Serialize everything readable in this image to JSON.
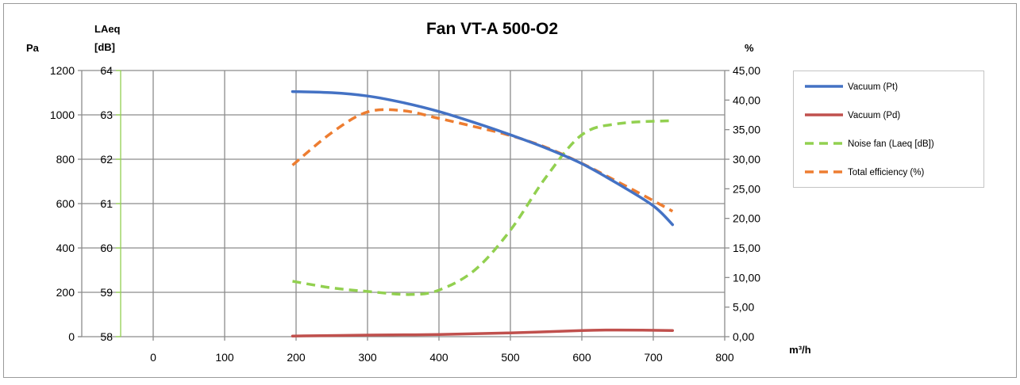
{
  "chart_data": {
    "type": "line",
    "title": "Fan VT-A 500-O2",
    "axes": {
      "x": {
        "unit_label": "m³/h",
        "ticks": [
          "0",
          "100",
          "200",
          "300",
          "400",
          "500",
          "600",
          "700",
          "800"
        ],
        "range": [
          -100,
          800
        ]
      },
      "y_pa": {
        "label": "Pa",
        "ticks": [
          "0",
          "200",
          "400",
          "600",
          "800",
          "1000",
          "1200"
        ],
        "range": [
          0,
          1200
        ]
      },
      "y_laeq": {
        "label_line1": "LAeq",
        "label_line2": "[dB]",
        "ticks": [
          "58",
          "59",
          "60",
          "61",
          "62",
          "63",
          "64"
        ],
        "range": [
          58,
          64
        ]
      },
      "y_pct": {
        "label": "%",
        "ticks": [
          "0,00",
          "5,00",
          "10,00",
          "15,00",
          "20,00",
          "25,00",
          "30,00",
          "35,00",
          "40,00",
          "45,00"
        ],
        "range": [
          0,
          45
        ]
      }
    },
    "grid": true,
    "legend_position": "right",
    "series": [
      {
        "name": "Vacuum (Pt)",
        "axis": "y_pa",
        "color": "#4472c4",
        "dash": false,
        "points": [
          [
            195,
            1105
          ],
          [
            250,
            1100
          ],
          [
            300,
            1085
          ],
          [
            350,
            1055
          ],
          [
            400,
            1015
          ],
          [
            450,
            965
          ],
          [
            500,
            910
          ],
          [
            550,
            850
          ],
          [
            600,
            780
          ],
          [
            650,
            690
          ],
          [
            700,
            590
          ],
          [
            727,
            505
          ]
        ]
      },
      {
        "name": "Vacuum (Pd)",
        "axis": "y_pa",
        "color": "#c0504d",
        "dash": false,
        "points": [
          [
            195,
            3
          ],
          [
            300,
            7
          ],
          [
            400,
            10
          ],
          [
            500,
            17
          ],
          [
            600,
            28
          ],
          [
            650,
            30
          ],
          [
            727,
            28
          ]
        ]
      },
      {
        "name": "Noise fan (Laeq [dB])",
        "axis": "y_laeq",
        "color": "#92d050",
        "dash": true,
        "points": [
          [
            195,
            59.25
          ],
          [
            250,
            59.1
          ],
          [
            300,
            59.02
          ],
          [
            360,
            58.95
          ],
          [
            400,
            59.05
          ],
          [
            450,
            59.5
          ],
          [
            500,
            60.4
          ],
          [
            550,
            61.6
          ],
          [
            600,
            62.55
          ],
          [
            650,
            62.8
          ],
          [
            727,
            62.87
          ]
        ]
      },
      {
        "name": "Total efficiency (%)",
        "axis": "y_pct",
        "color": "#ed7d31",
        "dash": true,
        "points": [
          [
            195,
            29.0
          ],
          [
            250,
            34.5
          ],
          [
            300,
            38.0
          ],
          [
            350,
            38.2
          ],
          [
            400,
            36.9
          ],
          [
            450,
            35.5
          ],
          [
            500,
            34.0
          ],
          [
            550,
            32.0
          ],
          [
            600,
            29.3
          ],
          [
            650,
            26.2
          ],
          [
            700,
            23.0
          ],
          [
            727,
            21.2
          ]
        ]
      }
    ]
  }
}
